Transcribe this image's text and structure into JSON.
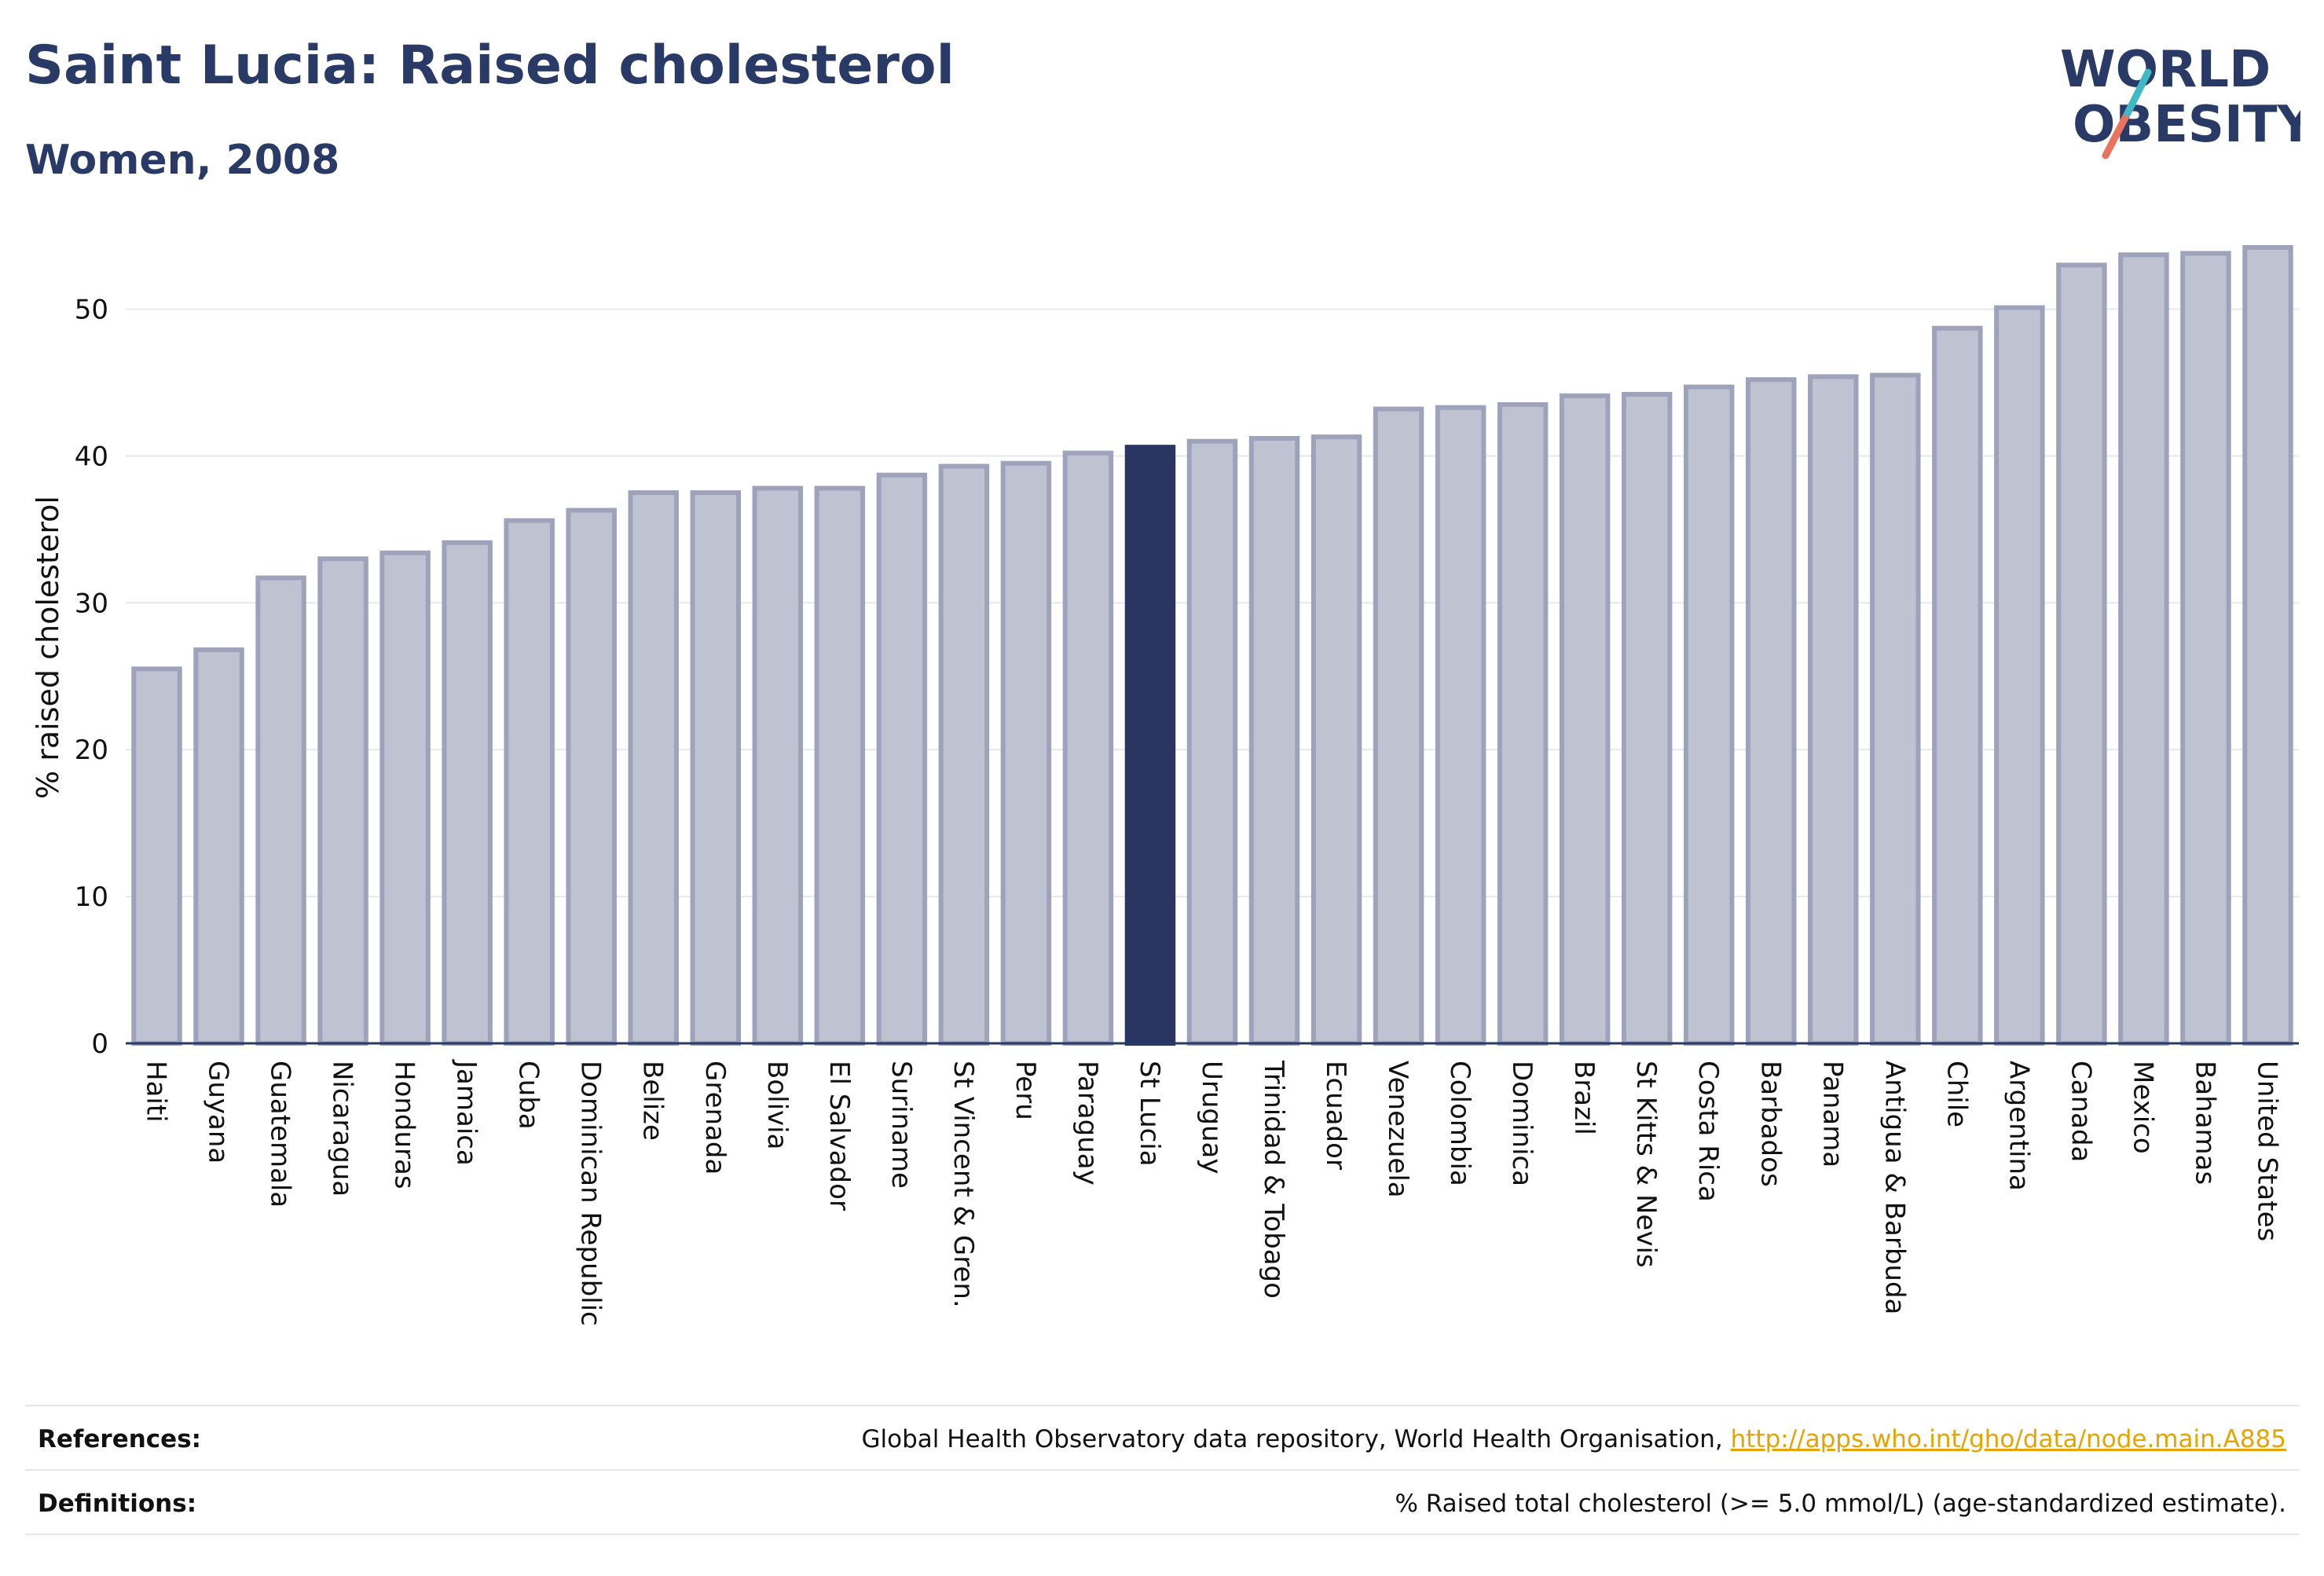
{
  "title": "Saint Lucia: Raised cholesterol",
  "subtitle": "Women, 2008",
  "logo": {
    "line1": "WORLD",
    "line2": "OBESITY"
  },
  "colors": {
    "highlight": "#2a3661",
    "bar": "#bfc2d1",
    "bar_border": "#9ea3bb",
    "text": "#2a3a66",
    "link": "#e6a400"
  },
  "chart_data": {
    "type": "bar",
    "title": "Saint Lucia: Raised cholesterol",
    "subtitle": "Women, 2008",
    "xlabel": "",
    "ylabel": "% raised cholesterol",
    "ylim": [
      0,
      55
    ],
    "yticks": [
      0,
      10,
      20,
      30,
      40,
      50
    ],
    "grid": true,
    "highlight": "St Lucia",
    "categories": [
      "Haiti",
      "Guyana",
      "Guatemala",
      "Nicaragua",
      "Honduras",
      "Jamaica",
      "Cuba",
      "Dominican Republic",
      "Belize",
      "Grenada",
      "Bolivia",
      "El Salvador",
      "Suriname",
      "St Vincent & Gren.",
      "Peru",
      "Paraguay",
      "St Lucia",
      "Uruguay",
      "Trinidad & Tobago",
      "Ecuador",
      "Venezuela",
      "Colombia",
      "Dominica",
      "Brazil",
      "St Kitts & Nevis",
      "Costa Rica",
      "Barbados",
      "Panama",
      "Antigua & Barbuda",
      "Chile",
      "Argentina",
      "Canada",
      "Mexico",
      "Bahamas",
      "United States"
    ],
    "values": [
      25.5,
      26.8,
      31.7,
      33.0,
      33.4,
      34.1,
      35.6,
      36.3,
      37.5,
      37.5,
      37.8,
      37.8,
      38.7,
      39.3,
      39.5,
      40.2,
      40.6,
      41.0,
      41.2,
      41.3,
      43.2,
      43.3,
      43.5,
      44.1,
      44.2,
      44.7,
      45.2,
      45.4,
      45.5,
      48.7,
      50.1,
      53.0,
      53.7,
      53.8,
      54.2
    ]
  },
  "references": {
    "label": "References:",
    "text": "Global Health Observatory data repository, World Health Organisation, ",
    "link": "http://apps.who.int/gho/data/node.main.A885"
  },
  "definitions": {
    "label": "Definitions:",
    "text": "% Raised total cholesterol (>= 5.0 mmol/L) (age-standardized estimate)."
  }
}
